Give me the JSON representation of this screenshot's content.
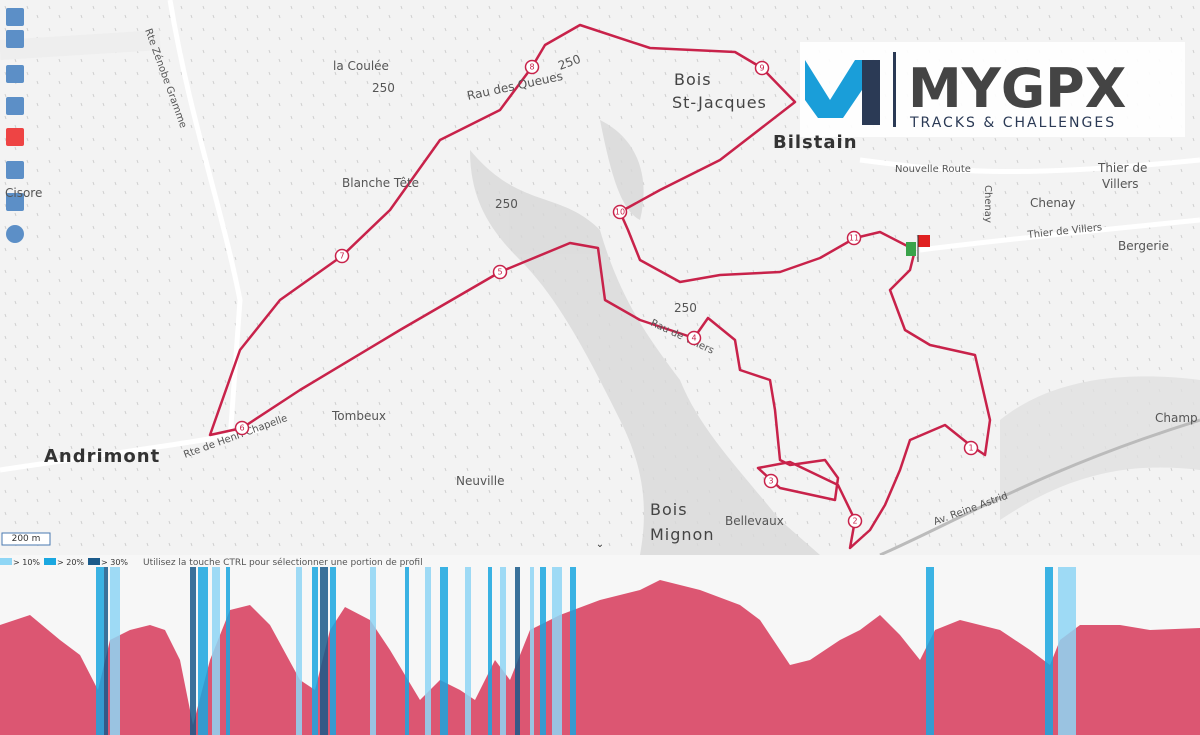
{
  "map": {
    "labels": [
      "la Coulée",
      "250",
      "250",
      "250",
      "250",
      "Rau des Queues",
      "Bois",
      "St-Jacques",
      "Bilstain",
      "Nouvelle Route",
      "Thier de",
      "Villers",
      "Chenay",
      "Chenay",
      "Thier de Villers",
      "Bergerie",
      "Blanche Tête",
      "Cisore",
      "Rte Zénobe Gramme",
      "Andrimont",
      "Tombeux",
      "Neuville",
      "Bois",
      "Mignon",
      "Bellevaux",
      "Rau de Villers",
      "Av. Reine Astrid",
      "Champ",
      "Rte de Henri Chapelle"
    ],
    "waypoints": [
      "1",
      "2",
      "3",
      "4",
      "5",
      "6",
      "7",
      "8",
      "9",
      "10",
      "11"
    ],
    "scale": "200 m"
  },
  "logo": {
    "name": "MYGPX",
    "tagline": "TRACKS & CHALLENGES"
  },
  "profile": {
    "legend": [
      "> 10%",
      "> 20%",
      "> 30%"
    ],
    "hint": "Utilisez la touche CTRL pour sélectionner une portion de profil"
  }
}
